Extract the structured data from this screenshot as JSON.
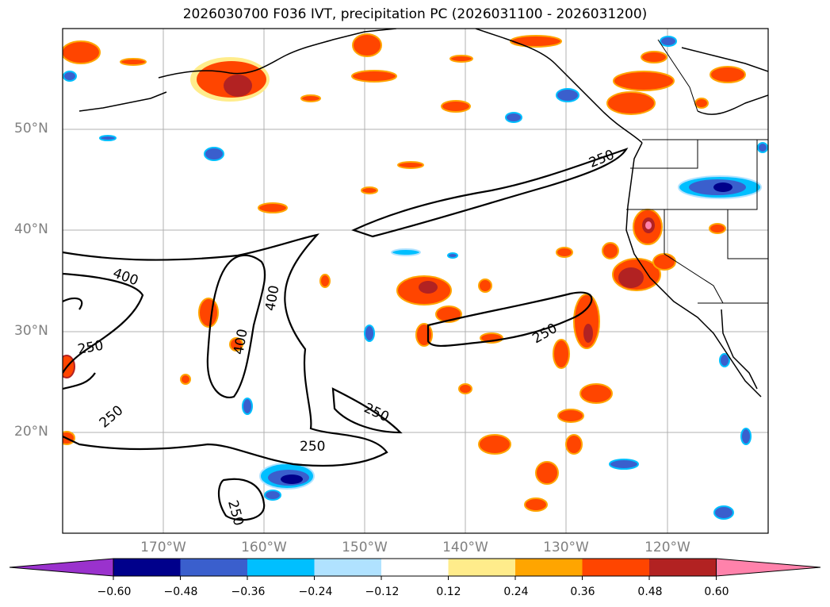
{
  "title": "2026030700 F036 IVT, precipitation PC (2026031100 - 2026031200)",
  "lat_labels": [
    "50°N",
    "40°N",
    "30°N",
    "20°N"
  ],
  "lon_labels": [
    "170°W",
    "160°W",
    "150°W",
    "140°W",
    "130°W",
    "120°W"
  ],
  "contour_labels": [
    "250",
    "250",
    "400",
    "400",
    "250",
    "250",
    "400",
    "250",
    "250",
    "250"
  ],
  "colorbar": {
    "ticks": [
      "−0.60",
      "−0.48",
      "−0.36",
      "−0.24",
      "−0.12",
      "0.12",
      "0.24",
      "0.36",
      "0.48",
      "0.60"
    ],
    "colors": [
      "#9a32cd",
      "#00008b",
      "#3a5fcd",
      "#00bfff",
      "#b0e2ff",
      "#ffffff",
      "#ffec8b",
      "#ffa500",
      "#ff4500",
      "#b22222",
      "#ff82ab"
    ]
  }
}
